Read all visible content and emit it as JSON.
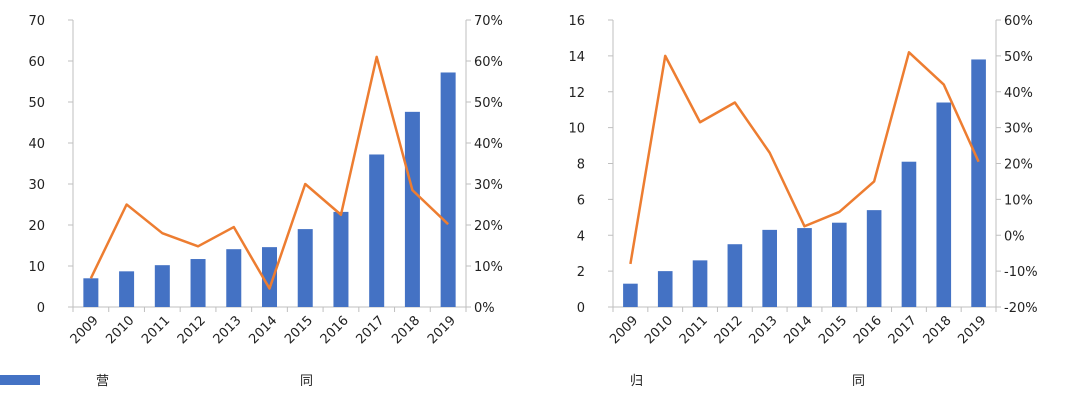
{
  "colors": {
    "bar": "#4472C4",
    "line": "#ED7D31",
    "axis": "#bfbfbf"
  },
  "chart_data": [
    {
      "type": "bar",
      "categories": [
        "2009",
        "2010",
        "2011",
        "2012",
        "2013",
        "2014",
        "2015",
        "2016",
        "2017",
        "2018",
        "2019"
      ],
      "left_axis": {
        "ylim": [
          0,
          70
        ],
        "ticks": [
          "0",
          "10",
          "20",
          "30",
          "40",
          "50",
          "60",
          "70"
        ]
      },
      "right_axis": {
        "ylim": [
          0,
          70
        ],
        "ticks": [
          "0%",
          "10%",
          "20%",
          "30%",
          "40%",
          "50%",
          "60%",
          "70%"
        ]
      },
      "series": [
        {
          "name": "营业收入（亿元）",
          "type": "bar",
          "axis": "left",
          "values": [
            7.0,
            8.7,
            10.2,
            11.7,
            14.1,
            14.6,
            19.0,
            23.2,
            37.2,
            47.6,
            57.2
          ]
        },
        {
          "name": "同比增速（%）",
          "type": "line",
          "axis": "right",
          "values": [
            7.0,
            25.0,
            18.0,
            14.8,
            19.5,
            4.5,
            30.0,
            22.5,
            61.0,
            28.5,
            20.2
          ]
        }
      ]
    },
    {
      "type": "bar",
      "categories": [
        "2009",
        "2010",
        "2011",
        "2012",
        "2013",
        "2014",
        "2015",
        "2016",
        "2017",
        "2018",
        "2019"
      ],
      "left_axis": {
        "ylim": [
          0,
          16
        ],
        "ticks": [
          "0",
          "2",
          "4",
          "6",
          "8",
          "10",
          "12",
          "14",
          "16"
        ]
      },
      "right_axis": {
        "ylim": [
          -20,
          60
        ],
        "ticks": [
          "-20%",
          "-10%",
          "0%",
          "10%",
          "20%",
          "30%",
          "40%",
          "50%",
          "60%"
        ]
      },
      "series": [
        {
          "name": "归母净利润（亿元）",
          "type": "bar",
          "axis": "left",
          "values": [
            1.3,
            2.0,
            2.6,
            3.5,
            4.3,
            4.4,
            4.7,
            5.4,
            8.1,
            11.4,
            13.8
          ]
        },
        {
          "name": "同比增速（%）",
          "type": "line",
          "axis": "right",
          "values": [
            -8.0,
            50.0,
            31.5,
            37.0,
            23.0,
            2.5,
            6.5,
            15.0,
            51.0,
            42.0,
            20.5
          ]
        }
      ]
    }
  ]
}
